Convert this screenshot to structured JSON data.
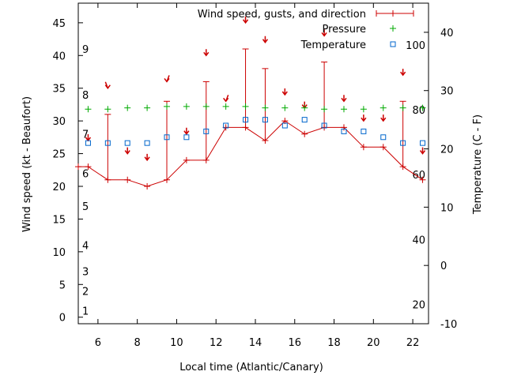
{
  "chart_data": {
    "type": "line",
    "xlabel": "Local time (Atlantic/Canary)",
    "ylabel_left": "Wind speed (kt - Beaufort)",
    "ylabel_right": "Temperature (C - F)",
    "xlim": [
      5.0,
      22.8
    ],
    "ylim_left": [
      -1,
      48
    ],
    "ylim_right": [
      -10,
      45
    ],
    "x_ticks": [
      6,
      8,
      10,
      12,
      14,
      16,
      18,
      20,
      22
    ],
    "y_ticks_left": [
      0,
      5,
      10,
      15,
      20,
      25,
      30,
      35,
      40,
      45
    ],
    "y_ticks_right": [
      -10,
      0,
      10,
      20,
      30,
      40
    ],
    "beaufort_labels": [
      {
        "label": "1",
        "y": 1
      },
      {
        "label": "2",
        "y": 4
      },
      {
        "label": "3",
        "y": 7
      },
      {
        "label": "4",
        "y": 11
      },
      {
        "label": "5",
        "y": 17
      },
      {
        "label": "6",
        "y": 22
      },
      {
        "label": "7",
        "y": 28
      },
      {
        "label": "8",
        "y": 34
      },
      {
        "label": "9",
        "y": 41
      }
    ],
    "fahrenheit_labels": [
      {
        "label": "20",
        "c": -6.7
      },
      {
        "label": "40",
        "c": 4.4
      },
      {
        "label": "60",
        "c": 15.6
      },
      {
        "label": "80",
        "c": 26.7
      },
      {
        "label": "100",
        "c": 37.8
      }
    ],
    "legend": [
      "Wind speed, gusts, and direction",
      "Pressure",
      "Temperature"
    ],
    "colors": {
      "wind": "#cc0000",
      "pressure": "#00aa00",
      "temperature": "#0066cc"
    },
    "series": {
      "wind": [
        {
          "x": 5.0,
          "speed": 23,
          "gust": null
        },
        {
          "x": 5.5,
          "speed": 23,
          "gust": null
        },
        {
          "x": 6.5,
          "speed": 21,
          "gust": 31
        },
        {
          "x": 7.5,
          "speed": 21,
          "gust": null
        },
        {
          "x": 8.5,
          "speed": 20,
          "gust": null
        },
        {
          "x": 9.5,
          "speed": 21,
          "gust": 33
        },
        {
          "x": 10.5,
          "speed": 24,
          "gust": null
        },
        {
          "x": 11.5,
          "speed": 24,
          "gust": 36
        },
        {
          "x": 12.5,
          "speed": 29,
          "gust": null
        },
        {
          "x": 13.5,
          "speed": 29,
          "gust": 41
        },
        {
          "x": 14.5,
          "speed": 27,
          "gust": 38
        },
        {
          "x": 15.5,
          "speed": 30,
          "gust": null
        },
        {
          "x": 16.5,
          "speed": 28,
          "gust": null
        },
        {
          "x": 17.5,
          "speed": 29,
          "gust": 39
        },
        {
          "x": 18.5,
          "speed": 29,
          "gust": null
        },
        {
          "x": 19.5,
          "speed": 26,
          "gust": null
        },
        {
          "x": 20.5,
          "speed": 26,
          "gust": null
        },
        {
          "x": 21.5,
          "speed": 23,
          "gust": 33
        },
        {
          "x": 22.5,
          "speed": 21,
          "gust": null
        }
      ],
      "direction_arrows": [
        {
          "x": 5.5,
          "y": 27,
          "dir": "s"
        },
        {
          "x": 6.5,
          "y": 35,
          "dir": "ssw"
        },
        {
          "x": 7.5,
          "y": 25,
          "dir": "s"
        },
        {
          "x": 8.5,
          "y": 24,
          "dir": "s"
        },
        {
          "x": 9.5,
          "y": 36,
          "dir": "sse"
        },
        {
          "x": 10.5,
          "y": 28,
          "dir": "s"
        },
        {
          "x": 11.5,
          "y": 40,
          "dir": "s"
        },
        {
          "x": 12.5,
          "y": 33,
          "dir": "sse"
        },
        {
          "x": 13.5,
          "y": 45,
          "dir": "s"
        },
        {
          "x": 14.5,
          "y": 42,
          "dir": "s"
        },
        {
          "x": 15.5,
          "y": 34,
          "dir": "s"
        },
        {
          "x": 16.5,
          "y": 32,
          "dir": "s"
        },
        {
          "x": 17.5,
          "y": 43,
          "dir": "s"
        },
        {
          "x": 18.5,
          "y": 33,
          "dir": "s"
        },
        {
          "x": 19.5,
          "y": 30,
          "dir": "s"
        },
        {
          "x": 20.5,
          "y": 30,
          "dir": "s"
        },
        {
          "x": 21.5,
          "y": 37,
          "dir": "s"
        },
        {
          "x": 22.5,
          "y": 25,
          "dir": "s"
        }
      ],
      "pressure": [
        {
          "x": 5.5,
          "y": 31.8
        },
        {
          "x": 6.5,
          "y": 31.8
        },
        {
          "x": 7.5,
          "y": 32.0
        },
        {
          "x": 8.5,
          "y": 32.0
        },
        {
          "x": 9.5,
          "y": 32.2
        },
        {
          "x": 10.5,
          "y": 32.2
        },
        {
          "x": 11.5,
          "y": 32.2
        },
        {
          "x": 12.5,
          "y": 32.2
        },
        {
          "x": 13.5,
          "y": 32.2
        },
        {
          "x": 14.5,
          "y": 32.0
        },
        {
          "x": 15.5,
          "y": 32.0
        },
        {
          "x": 16.5,
          "y": 32.0
        },
        {
          "x": 17.5,
          "y": 31.8
        },
        {
          "x": 18.5,
          "y": 31.8
        },
        {
          "x": 19.5,
          "y": 31.8
        },
        {
          "x": 20.5,
          "y": 32.0
        },
        {
          "x": 21.5,
          "y": 32.0
        },
        {
          "x": 22.5,
          "y": 32.0
        }
      ],
      "temperature_c": [
        {
          "x": 5.5,
          "y": 21
        },
        {
          "x": 6.5,
          "y": 21
        },
        {
          "x": 7.5,
          "y": 21
        },
        {
          "x": 8.5,
          "y": 21
        },
        {
          "x": 9.5,
          "y": 22
        },
        {
          "x": 10.5,
          "y": 22
        },
        {
          "x": 11.5,
          "y": 23
        },
        {
          "x": 12.5,
          "y": 24
        },
        {
          "x": 13.5,
          "y": 25
        },
        {
          "x": 14.5,
          "y": 25
        },
        {
          "x": 15.5,
          "y": 24
        },
        {
          "x": 16.5,
          "y": 25
        },
        {
          "x": 17.5,
          "y": 24
        },
        {
          "x": 18.5,
          "y": 23
        },
        {
          "x": 19.5,
          "y": 23
        },
        {
          "x": 20.5,
          "y": 22
        },
        {
          "x": 21.5,
          "y": 21
        },
        {
          "x": 22.5,
          "y": 21
        }
      ]
    }
  }
}
